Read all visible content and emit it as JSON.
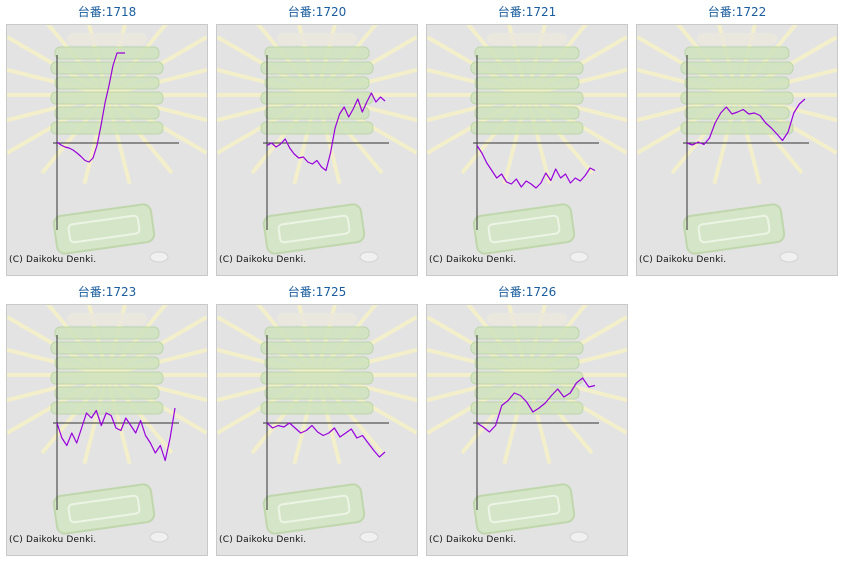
{
  "copyright": "(C) Daikoku Denki.",
  "colors": {
    "line": "#9900dd",
    "title": "#1a5d9e",
    "axis": "#333333",
    "bg": "#e3e3e3"
  },
  "machines": [
    {
      "label": "台番:1718",
      "trend": [
        2,
        -4,
        -8,
        -10,
        -14,
        -20,
        -27,
        -35,
        -38,
        -30,
        -5,
        35,
        80,
        115,
        155,
        180,
        180,
        181
      ]
    },
    {
      "label": "台番:1720",
      "trend": [
        -5,
        0,
        -8,
        -2,
        8,
        -10,
        -22,
        -30,
        -28,
        -38,
        -42,
        -35,
        -48,
        -55,
        -20,
        30,
        58,
        72,
        52,
        68,
        88,
        62,
        82,
        100,
        82,
        92,
        84
      ]
    },
    {
      "label": "台番:1721",
      "trend": [
        -5,
        -20,
        -40,
        -55,
        -70,
        -62,
        -78,
        -82,
        -72,
        -88,
        -76,
        -82,
        -90,
        -80,
        -60,
        -75,
        -52,
        -70,
        -62,
        -80,
        -70,
        -76,
        -65,
        -50,
        -55
      ]
    },
    {
      "label": "台番:1722",
      "trend": [
        0,
        -4,
        2,
        -3,
        10,
        40,
        60,
        72,
        58,
        62,
        67,
        58,
        60,
        55,
        40,
        30,
        18,
        5,
        22,
        60,
        78,
        88
      ]
    },
    {
      "label": "台番:1723",
      "trend": [
        0,
        -30,
        -45,
        -20,
        -40,
        -10,
        20,
        10,
        25,
        -5,
        20,
        15,
        -10,
        -15,
        10,
        -5,
        -20,
        5,
        -25,
        -40,
        -60,
        -45,
        -75,
        -30,
        30
      ]
    },
    {
      "label": "台番:1725",
      "trend": [
        0,
        -10,
        -5,
        -8,
        0,
        -10,
        -20,
        -15,
        -5,
        -18,
        -25,
        -20,
        -10,
        -28,
        -20,
        -12,
        -30,
        -25,
        -40,
        -55,
        -68,
        -58
      ]
    },
    {
      "label": "台番:1726",
      "trend": [
        0,
        -8,
        -18,
        -5,
        35,
        45,
        60,
        55,
        42,
        22,
        30,
        40,
        55,
        68,
        52,
        60,
        80,
        90,
        72,
        75
      ]
    }
  ]
}
